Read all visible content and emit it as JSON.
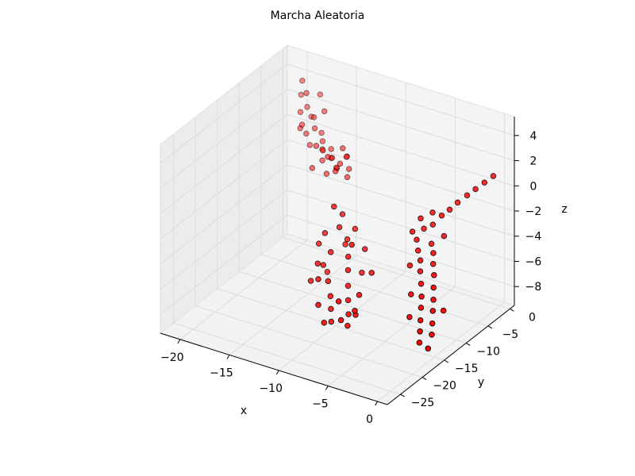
{
  "chart_data": {
    "type": "scatter",
    "projection": "3d",
    "title": "Marcha Aleatoria",
    "xlabel": "x",
    "ylabel": "y",
    "zlabel": "z",
    "xlim": [
      -22,
      1
    ],
    "ylim": [
      -28,
      1
    ],
    "zlim": [
      -9.5,
      5.5
    ],
    "x_ticks": [
      -20,
      -15,
      -10,
      -5,
      0
    ],
    "y_ticks": [
      -25,
      -20,
      -15,
      -10,
      -5,
      0
    ],
    "z_ticks": [
      -8,
      -6,
      -4,
      -2,
      0,
      2,
      4
    ],
    "grid": true,
    "marker": {
      "face_color": "#ff0000",
      "edge_color": "#000000",
      "shape": "circle"
    },
    "series": [
      {
        "points": [
          [
            -19.5,
            -1.2,
            3.9
          ],
          [
            -19.0,
            -1.4,
            3.1
          ],
          [
            -19.8,
            -0.8,
            2.6
          ],
          [
            -18.7,
            -1.9,
            2.2
          ],
          [
            -19.3,
            -2.1,
            1.7
          ],
          [
            -18.2,
            -1.5,
            1.4
          ],
          [
            -18.9,
            -0.5,
            1.0
          ],
          [
            -17.8,
            -2.2,
            0.8
          ],
          [
            -18.4,
            -2.8,
            0.4
          ],
          [
            -17.6,
            -1.1,
            0.2
          ],
          [
            -17.1,
            -2.0,
            -0.1
          ],
          [
            -17.9,
            -3.1,
            -0.3
          ],
          [
            -16.8,
            -2.6,
            -0.6
          ],
          [
            -17.3,
            -1.6,
            -0.9
          ],
          [
            -16.5,
            -3.4,
            -1.1
          ],
          [
            -16.1,
            -2.3,
            -0.4
          ],
          [
            -15.7,
            -3.0,
            -0.8
          ],
          [
            -16.3,
            -1.8,
            -1.3
          ],
          [
            -15.4,
            -2.7,
            -1.6
          ],
          [
            -15.9,
            -3.8,
            -1.9
          ],
          [
            -15.1,
            -1.9,
            -0.2
          ],
          [
            -14.8,
            -3.2,
            -1.0
          ],
          [
            -14.5,
            -2.4,
            -0.6
          ],
          [
            -14.9,
            -4.0,
            -1.4
          ],
          [
            -14.2,
            -2.9,
            -2.0
          ],
          [
            -18.1,
            -0.3,
            2.9
          ],
          [
            -18.6,
            -3.3,
            1.2
          ],
          [
            -17.4,
            -0.9,
            1.9
          ],
          [
            -16.9,
            -3.9,
            0.1
          ],
          [
            -16.0,
            -1.2,
            -2.2
          ],
          [
            -15.5,
            -4.4,
            -0.3
          ],
          [
            -14.6,
            -1.6,
            -1.8
          ],
          [
            -19.1,
            -2.6,
            0.6
          ],
          [
            -17.0,
            -4.6,
            -1.5
          ],
          [
            -15.2,
            -0.7,
            -1.2
          ]
        ]
      },
      {
        "points": [
          [
            -11.5,
            -12.0,
            -1.2
          ],
          [
            -11.0,
            -11.2,
            -1.9
          ],
          [
            -10.6,
            -12.8,
            -2.4
          ],
          [
            -11.8,
            -13.4,
            -3.0
          ],
          [
            -10.2,
            -11.9,
            -3.5
          ],
          [
            -10.9,
            -14.1,
            -4.1
          ],
          [
            -9.8,
            -12.6,
            -4.6
          ],
          [
            -11.3,
            -14.9,
            -5.0
          ],
          [
            -9.5,
            -13.3,
            -5.4
          ],
          [
            -10.5,
            -15.6,
            -5.9
          ],
          [
            -9.1,
            -14.2,
            -6.3
          ],
          [
            -10.0,
            -16.2,
            -6.8
          ],
          [
            -8.7,
            -15.1,
            -7.1
          ],
          [
            -9.6,
            -17.0,
            -7.5
          ],
          [
            -8.3,
            -15.9,
            -7.9
          ],
          [
            -9.2,
            -17.8,
            -8.2
          ],
          [
            -8.0,
            -16.8,
            -8.5
          ],
          [
            -10.8,
            -11.0,
            -4.3
          ],
          [
            -8.9,
            -13.8,
            -3.1
          ],
          [
            -11.9,
            -16.4,
            -6.0
          ],
          [
            -8.5,
            -12.4,
            -5.6
          ],
          [
            -7.8,
            -14.6,
            -6.6
          ],
          [
            -10.3,
            -18.3,
            -7.0
          ],
          [
            -7.5,
            -16.1,
            -7.7
          ],
          [
            -9.9,
            -10.8,
            -2.9
          ],
          [
            -8.1,
            -18.6,
            -6.1
          ],
          [
            -11.6,
            -15.5,
            -4.8
          ],
          [
            -7.2,
            -13.1,
            -5.1
          ],
          [
            -9.4,
            -19.0,
            -8.0
          ],
          [
            -7.0,
            -17.4,
            -6.9
          ],
          [
            -12.2,
            -13.9,
            -3.8
          ],
          [
            -8.6,
            -11.5,
            -4.0
          ],
          [
            -10.7,
            -17.4,
            -5.3
          ],
          [
            -7.6,
            -19.2,
            -7.3
          ],
          [
            -12.0,
            -12.4,
            -6.4
          ]
        ]
      },
      {
        "points": [
          [
            -4.5,
            -8.0,
            -1.5
          ],
          [
            -3.9,
            -8.6,
            -2.0
          ],
          [
            -4.8,
            -9.2,
            -2.3
          ],
          [
            -3.4,
            -7.7,
            -1.8
          ],
          [
            -4.1,
            -9.8,
            -2.6
          ],
          [
            -3.0,
            -8.9,
            -2.9
          ],
          [
            -3.7,
            -10.4,
            -3.2
          ],
          [
            -2.6,
            -9.4,
            -3.4
          ],
          [
            -3.2,
            -11.0,
            -3.7
          ],
          [
            -2.3,
            -10.1,
            -4.0
          ],
          [
            -2.9,
            -11.7,
            -4.3
          ],
          [
            -1.9,
            -10.8,
            -4.6
          ],
          [
            -2.5,
            -12.4,
            -5.0
          ],
          [
            -1.6,
            -11.6,
            -5.3
          ],
          [
            -2.1,
            -13.2,
            -5.7
          ],
          [
            -1.3,
            -12.3,
            -6.0
          ],
          [
            -1.8,
            -14.0,
            -6.3
          ],
          [
            -1.0,
            -13.1,
            -6.6
          ],
          [
            -1.5,
            -14.8,
            -7.0
          ],
          [
            -0.7,
            -13.9,
            -7.3
          ],
          [
            -1.2,
            -15.6,
            -7.6
          ],
          [
            -0.4,
            -14.7,
            -7.9
          ],
          [
            -0.9,
            -16.4,
            -8.2
          ],
          [
            -3.6,
            -7.3,
            -1.0
          ],
          [
            -4.3,
            -10.9,
            -4.4
          ],
          [
            -2.0,
            -8.3,
            -2.2
          ],
          [
            -0.5,
            -11.8,
            -6.8
          ],
          [
            -2.7,
            -14.6,
            -7.1
          ],
          [
            -0.2,
            -16.0,
            -8.6
          ],
          [
            -3.3,
            -12.9,
            -5.9
          ],
          [
            0.2,
            -2.0,
            1.4
          ],
          [
            -0.3,
            -2.9,
            1.0
          ],
          [
            -0.8,
            -3.8,
            0.6
          ],
          [
            -1.3,
            -4.6,
            0.2
          ],
          [
            -1.9,
            -5.4,
            -0.3
          ],
          [
            -2.4,
            -6.1,
            -0.8
          ],
          [
            -2.9,
            -6.8,
            -1.2
          ]
        ]
      }
    ]
  }
}
